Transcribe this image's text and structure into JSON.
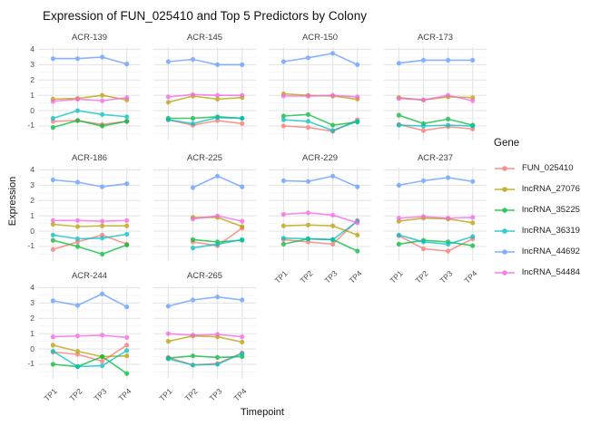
{
  "title": "Expression of FUN_025410 and Top 5 Predictors by Colony",
  "chart_data": {
    "type": "line",
    "title": "Expression of FUN_025410 and Top 5 Predictors by Colony",
    "xlabel": "Timepoint",
    "ylabel": "Expression",
    "x": [
      "TP1",
      "TP2",
      "TP3",
      "TP4"
    ],
    "y_ticks": [
      4,
      3,
      2,
      1,
      0,
      -1
    ],
    "ylim": [
      -1.95,
      4.15
    ],
    "grid": true,
    "legend_position": "right",
    "legend_title": "Gene",
    "genes": [
      {
        "name": "FUN_025410",
        "color": "#F8766D"
      },
      {
        "name": "lncRNA_27076",
        "color": "#B79F00"
      },
      {
        "name": "lncRNA_35225",
        "color": "#00BA38"
      },
      {
        "name": "lncRNA_36319",
        "color": "#00BFC4"
      },
      {
        "name": "lncRNA_44692",
        "color": "#619CFF"
      },
      {
        "name": "lncRNA_54484",
        "color": "#F564E3"
      }
    ],
    "facets": [
      {
        "name": "ACR-139",
        "values": {
          "FUN_025410": [
            -0.7,
            -0.65,
            -0.9,
            -0.7
          ],
          "lncRNA_27076": [
            0.75,
            0.8,
            1.0,
            0.7
          ],
          "lncRNA_35225": [
            -1.1,
            -0.65,
            -1.0,
            -0.7
          ],
          "lncRNA_36319": [
            -0.5,
            0.0,
            -0.25,
            -0.4
          ],
          "lncRNA_44692": [
            3.4,
            3.4,
            3.5,
            3.05
          ],
          "lncRNA_54484": [
            0.6,
            0.75,
            0.65,
            0.85
          ]
        }
      },
      {
        "name": "ACR-145",
        "values": {
          "FUN_025410": [
            -0.6,
            -0.95,
            -0.65,
            -0.85
          ],
          "lncRNA_27076": [
            0.55,
            0.95,
            0.75,
            0.85
          ],
          "lncRNA_35225": [
            -0.5,
            -0.5,
            -0.4,
            -0.5
          ],
          "lncRNA_36319": [
            -0.6,
            -0.85,
            -0.45,
            -0.5
          ],
          "lncRNA_44692": [
            3.2,
            3.35,
            3.0,
            3.0
          ],
          "lncRNA_54484": [
            0.9,
            1.05,
            1.0,
            1.0
          ]
        }
      },
      {
        "name": "ACR-150",
        "values": {
          "FUN_025410": [
            -1.0,
            -1.1,
            -1.35,
            -0.6
          ],
          "lncRNA_27076": [
            1.1,
            1.0,
            0.95,
            0.75
          ],
          "lncRNA_35225": [
            -0.35,
            -0.25,
            -0.95,
            -0.75
          ],
          "lncRNA_36319": [
            -0.6,
            -0.7,
            -1.3,
            -0.7
          ],
          "lncRNA_44692": [
            3.2,
            3.45,
            3.75,
            3.0
          ],
          "lncRNA_54484": [
            0.95,
            0.95,
            1.0,
            0.9
          ]
        }
      },
      {
        "name": "ACR-173",
        "values": {
          "FUN_025410": [
            -0.9,
            -1.3,
            -1.05,
            -1.2
          ],
          "lncRNA_27076": [
            0.85,
            0.7,
            0.9,
            0.85
          ],
          "lncRNA_35225": [
            -0.3,
            -0.85,
            -0.55,
            -0.95
          ],
          "lncRNA_36319": [
            -0.95,
            -1.0,
            -0.95,
            -1.0
          ],
          "lncRNA_44692": [
            3.1,
            3.3,
            3.3,
            3.3
          ],
          "lncRNA_54484": [
            0.8,
            0.7,
            1.0,
            0.65
          ]
        }
      },
      {
        "name": "ACR-186",
        "values": {
          "FUN_025410": [
            -1.2,
            -0.7,
            -0.25,
            -0.85
          ],
          "lncRNA_27076": [
            0.45,
            0.3,
            0.35,
            0.35
          ],
          "lncRNA_35225": [
            -0.6,
            -1.0,
            -1.5,
            -0.9
          ],
          "lncRNA_36319": [
            -0.25,
            -0.5,
            -0.45,
            -0.2
          ],
          "lncRNA_44692": [
            3.35,
            3.2,
            2.9,
            3.1
          ],
          "lncRNA_54484": [
            0.7,
            0.7,
            0.65,
            0.7
          ]
        }
      },
      {
        "name": "ACR-225",
        "values": {
          "FUN_025410": [
            null,
            -0.7,
            -0.95,
            0.2
          ],
          "lncRNA_27076": [
            null,
            0.9,
            0.9,
            0.3
          ],
          "lncRNA_35225": [
            null,
            -0.55,
            -0.7,
            -0.6
          ],
          "lncRNA_36319": [
            null,
            -1.1,
            -0.85,
            -0.55
          ],
          "lncRNA_44692": [
            null,
            2.85,
            3.6,
            2.9
          ],
          "lncRNA_54484": [
            null,
            0.8,
            1.0,
            0.65
          ]
        }
      },
      {
        "name": "ACR-229",
        "values": {
          "FUN_025410": [
            -0.55,
            -0.7,
            -0.85,
            0.7
          ],
          "lncRNA_27076": [
            0.35,
            0.4,
            0.35,
            -0.25
          ],
          "lncRNA_35225": [
            -0.85,
            -0.5,
            -0.55,
            -1.3
          ],
          "lncRNA_36319": [
            -0.45,
            -0.5,
            -0.55,
            0.65
          ],
          "lncRNA_44692": [
            3.3,
            3.25,
            3.6,
            2.9
          ],
          "lncRNA_54484": [
            1.1,
            1.2,
            1.05,
            0.55
          ]
        }
      },
      {
        "name": "ACR-237",
        "values": {
          "FUN_025410": [
            -0.3,
            -1.15,
            -1.3,
            -0.5
          ],
          "lncRNA_27076": [
            0.65,
            0.85,
            0.8,
            0.55
          ],
          "lncRNA_35225": [
            -0.85,
            -0.6,
            -0.7,
            -0.95
          ],
          "lncRNA_36319": [
            -0.25,
            -0.7,
            -0.85,
            -0.35
          ],
          "lncRNA_44692": [
            3.0,
            3.3,
            3.5,
            3.25
          ],
          "lncRNA_54484": [
            0.85,
            0.95,
            0.85,
            0.9
          ]
        }
      },
      {
        "name": "ACR-244",
        "values": {
          "FUN_025410": [
            -0.2,
            -0.35,
            -0.8,
            0.25
          ],
          "lncRNA_27076": [
            0.25,
            -0.15,
            -0.5,
            -0.45
          ],
          "lncRNA_35225": [
            -1.0,
            -1.15,
            -0.5,
            -1.6
          ],
          "lncRNA_36319": [
            -0.15,
            -1.15,
            -1.1,
            -0.1
          ],
          "lncRNA_44692": [
            3.15,
            2.85,
            3.6,
            2.75
          ],
          "lncRNA_54484": [
            0.8,
            0.85,
            0.9,
            0.75
          ]
        }
      },
      {
        "name": "ACR-265",
        "values": {
          "FUN_025410": [
            -0.55,
            -1.05,
            -0.95,
            -0.25
          ],
          "lncRNA_27076": [
            0.5,
            0.85,
            0.8,
            0.45
          ],
          "lncRNA_35225": [
            -0.6,
            -0.45,
            -0.55,
            -0.5
          ],
          "lncRNA_36319": [
            -0.65,
            -1.05,
            -1.0,
            -0.3
          ],
          "lncRNA_44692": [
            2.8,
            3.2,
            3.4,
            3.2
          ],
          "lncRNA_54484": [
            1.0,
            0.9,
            0.95,
            0.8
          ]
        }
      }
    ]
  }
}
